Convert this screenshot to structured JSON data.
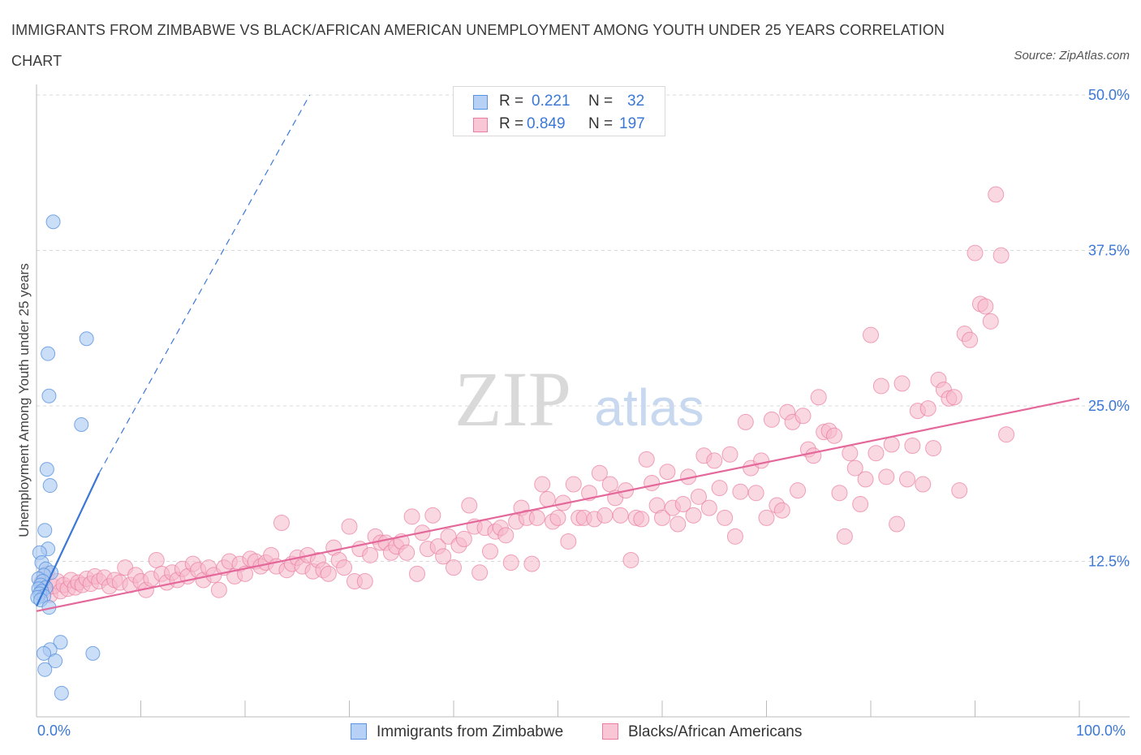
{
  "header": {
    "title": "IMMIGRANTS FROM ZIMBABWE VS BLACK/AFRICAN AMERICAN UNEMPLOYMENT AMONG YOUTH UNDER 25 YEARS CORRELATION CHART",
    "source": "Source: ZipAtlas.com"
  },
  "legend": {
    "rows": [
      {
        "r_label": "R =",
        "r_value": "0.221",
        "n_label": "N =",
        "n_value": "32"
      },
      {
        "r_label": "R =",
        "r_value": "0.849",
        "n_label": "N =",
        "n_value": "197"
      }
    ]
  },
  "bottom_legend": {
    "series1": "Immigrants from Zimbabwe",
    "series2": "Blacks/African Americans"
  },
  "watermark": {
    "zip": "ZIP",
    "atlas": "atlas"
  },
  "colors": {
    "blue_fill": "#a9c8f2",
    "blue_stroke": "#5b93df",
    "blue_line": "#3b78d6",
    "pink_fill": "#f5b8cb",
    "pink_stroke": "#e97ea0",
    "pink_line": "#e4689a",
    "axis_label": "#3b78d6",
    "grid": "#d8d8d8"
  },
  "chart_data": {
    "type": "scatter",
    "title": "IMMIGRANTS FROM ZIMBABWE VS BLACK/AFRICAN AMERICAN UNEMPLOYMENT AMONG YOUTH UNDER 25 YEARS CORRELATION CHART",
    "xlabel": "",
    "ylabel": "Unemployment Among Youth under 25 years",
    "xlim": [
      0,
      100
    ],
    "ylim": [
      0,
      50
    ],
    "x_tick_labels": [
      "0.0%",
      "100.0%"
    ],
    "y_ticks": [
      12.5,
      25.0,
      37.5,
      50.0
    ],
    "y_tick_labels": [
      "12.5%",
      "25.0%",
      "37.5%",
      "50.0%"
    ],
    "grid": "horizontal dashed",
    "legend_placement": "top-center",
    "series": [
      {
        "name": "Immigrants from Zimbabwe",
        "color": "#a9c8f2",
        "r": 0.221,
        "n": 32,
        "trend_solid": [
          [
            0,
            8.9
          ],
          [
            6.0,
            19.6
          ]
        ],
        "trend_dashed": [
          [
            6.0,
            19.6
          ],
          [
            26.2,
            50.0
          ]
        ],
        "points": [
          [
            1.6,
            39.8
          ],
          [
            4.8,
            30.4
          ],
          [
            1.1,
            29.2
          ],
          [
            1.2,
            25.8
          ],
          [
            4.3,
            23.5
          ],
          [
            1.0,
            19.9
          ],
          [
            1.3,
            18.6
          ],
          [
            0.8,
            15.0
          ],
          [
            1.1,
            13.5
          ],
          [
            0.3,
            13.2
          ],
          [
            0.5,
            12.4
          ],
          [
            0.9,
            11.9
          ],
          [
            1.4,
            11.6
          ],
          [
            0.7,
            11.4
          ],
          [
            0.2,
            11.1
          ],
          [
            0.6,
            10.9
          ],
          [
            0.4,
            10.6
          ],
          [
            0.9,
            10.4
          ],
          [
            0.2,
            10.3
          ],
          [
            0.5,
            10.1
          ],
          [
            0.3,
            9.9
          ],
          [
            0.7,
            9.7
          ],
          [
            0.1,
            9.6
          ],
          [
            0.4,
            9.4
          ],
          [
            1.2,
            8.8
          ],
          [
            2.3,
            6.0
          ],
          [
            1.3,
            5.4
          ],
          [
            5.4,
            5.1
          ],
          [
            0.7,
            5.1
          ],
          [
            1.8,
            4.5
          ],
          [
            0.8,
            3.8
          ],
          [
            2.4,
            1.9
          ]
        ]
      },
      {
        "name": "Blacks/African Americans",
        "color": "#f5b8cb",
        "r": 0.849,
        "n": 197,
        "trend": [
          [
            0,
            8.5
          ],
          [
            100,
            25.6
          ]
        ],
        "points": [
          [
            0.5,
            10.8
          ],
          [
            0.8,
            10.2
          ],
          [
            1.0,
            11.5
          ],
          [
            1.3,
            9.8
          ],
          [
            1.6,
            10.5
          ],
          [
            2.0,
            10.9
          ],
          [
            2.3,
            10.1
          ],
          [
            2.6,
            10.6
          ],
          [
            3.0,
            10.3
          ],
          [
            3.3,
            11.0
          ],
          [
            3.7,
            10.4
          ],
          [
            4.0,
            10.8
          ],
          [
            4.4,
            10.6
          ],
          [
            4.8,
            11.1
          ],
          [
            5.2,
            10.7
          ],
          [
            5.6,
            11.3
          ],
          [
            6.0,
            10.9
          ],
          [
            6.5,
            11.2
          ],
          [
            7.0,
            10.5
          ],
          [
            7.5,
            11.0
          ],
          [
            8.0,
            10.8
          ],
          [
            8.5,
            12.0
          ],
          [
            9.0,
            10.6
          ],
          [
            9.5,
            11.4
          ],
          [
            10.0,
            10.9
          ],
          [
            10.5,
            10.2
          ],
          [
            11.0,
            11.1
          ],
          [
            11.5,
            12.6
          ],
          [
            12.0,
            11.5
          ],
          [
            12.5,
            10.8
          ],
          [
            13.0,
            11.6
          ],
          [
            13.5,
            11.0
          ],
          [
            14.0,
            11.9
          ],
          [
            14.5,
            11.3
          ],
          [
            15.0,
            12.3
          ],
          [
            15.5,
            11.8
          ],
          [
            16.0,
            11.0
          ],
          [
            16.5,
            12.0
          ],
          [
            17.0,
            11.4
          ],
          [
            17.5,
            10.2
          ],
          [
            18.0,
            12.0
          ],
          [
            18.5,
            12.5
          ],
          [
            19.0,
            11.3
          ],
          [
            19.5,
            12.3
          ],
          [
            20.0,
            11.5
          ],
          [
            20.5,
            12.7
          ],
          [
            21.0,
            12.5
          ],
          [
            21.5,
            12.1
          ],
          [
            22.0,
            12.4
          ],
          [
            22.5,
            13.0
          ],
          [
            23.0,
            12.1
          ],
          [
            23.5,
            15.6
          ],
          [
            24.0,
            11.8
          ],
          [
            24.5,
            12.3
          ],
          [
            25.0,
            12.8
          ],
          [
            25.5,
            12.1
          ],
          [
            26.0,
            13.0
          ],
          [
            26.5,
            11.7
          ],
          [
            27.0,
            12.6
          ],
          [
            27.5,
            11.8
          ],
          [
            28.0,
            11.5
          ],
          [
            28.5,
            13.6
          ],
          [
            29.0,
            12.6
          ],
          [
            29.5,
            12.0
          ],
          [
            30.0,
            15.3
          ],
          [
            30.5,
            10.9
          ],
          [
            31.0,
            13.5
          ],
          [
            31.5,
            10.9
          ],
          [
            32.0,
            13.0
          ],
          [
            32.5,
            14.5
          ],
          [
            33.0,
            14.0
          ],
          [
            33.5,
            14.0
          ],
          [
            34.0,
            13.2
          ],
          [
            34.5,
            13.7
          ],
          [
            35.0,
            14.1
          ],
          [
            35.5,
            13.2
          ],
          [
            36.0,
            16.1
          ],
          [
            36.5,
            11.5
          ],
          [
            37.0,
            14.8
          ],
          [
            37.5,
            13.5
          ],
          [
            38.0,
            16.2
          ],
          [
            38.5,
            13.7
          ],
          [
            39.0,
            12.9
          ],
          [
            39.5,
            14.5
          ],
          [
            40.0,
            12.0
          ],
          [
            40.5,
            13.8
          ],
          [
            41.0,
            14.3
          ],
          [
            41.5,
            17.0
          ],
          [
            42.0,
            15.3
          ],
          [
            42.5,
            11.6
          ],
          [
            43.0,
            15.2
          ],
          [
            43.5,
            13.3
          ],
          [
            44.0,
            14.9
          ],
          [
            44.5,
            15.2
          ],
          [
            45.0,
            14.6
          ],
          [
            45.5,
            12.4
          ],
          [
            46.0,
            15.7
          ],
          [
            46.5,
            16.8
          ],
          [
            47.0,
            16.0
          ],
          [
            47.5,
            12.3
          ],
          [
            48.0,
            16.0
          ],
          [
            48.5,
            18.7
          ],
          [
            49.0,
            17.5
          ],
          [
            49.5,
            15.7
          ],
          [
            50.0,
            16.0
          ],
          [
            50.5,
            17.2
          ],
          [
            51.0,
            14.1
          ],
          [
            51.5,
            18.7
          ],
          [
            52.0,
            16.0
          ],
          [
            52.5,
            16.0
          ],
          [
            53.0,
            18.0
          ],
          [
            53.5,
            15.9
          ],
          [
            54.0,
            19.6
          ],
          [
            54.5,
            16.2
          ],
          [
            55.0,
            18.7
          ],
          [
            55.5,
            17.6
          ],
          [
            56.0,
            16.2
          ],
          [
            56.5,
            18.2
          ],
          [
            57.0,
            12.6
          ],
          [
            57.5,
            16.0
          ],
          [
            58.0,
            15.9
          ],
          [
            58.5,
            20.7
          ],
          [
            59.0,
            18.8
          ],
          [
            59.5,
            17.0
          ],
          [
            60.0,
            16.0
          ],
          [
            60.5,
            19.7
          ],
          [
            61.0,
            16.8
          ],
          [
            61.5,
            15.5
          ],
          [
            62.0,
            17.1
          ],
          [
            62.5,
            19.3
          ],
          [
            63.0,
            16.2
          ],
          [
            63.5,
            17.7
          ],
          [
            64.0,
            21.0
          ],
          [
            64.5,
            16.8
          ],
          [
            65.0,
            20.6
          ],
          [
            65.5,
            18.4
          ],
          [
            66.0,
            16.0
          ],
          [
            66.5,
            21.1
          ],
          [
            67.0,
            14.5
          ],
          [
            67.5,
            18.1
          ],
          [
            68.0,
            23.7
          ],
          [
            68.5,
            20.0
          ],
          [
            69.0,
            18.0
          ],
          [
            69.5,
            20.6
          ],
          [
            70.0,
            16.0
          ],
          [
            70.5,
            23.9
          ],
          [
            71.0,
            17.0
          ],
          [
            71.5,
            16.6
          ],
          [
            72.0,
            24.5
          ],
          [
            72.5,
            23.7
          ],
          [
            73.0,
            18.2
          ],
          [
            73.5,
            24.2
          ],
          [
            74.0,
            21.5
          ],
          [
            74.5,
            21.0
          ],
          [
            75.0,
            25.7
          ],
          [
            75.5,
            22.9
          ],
          [
            76.0,
            23.0
          ],
          [
            76.5,
            22.6
          ],
          [
            77.0,
            18.0
          ],
          [
            77.5,
            14.5
          ],
          [
            78.0,
            21.2
          ],
          [
            78.5,
            20.0
          ],
          [
            79.0,
            17.1
          ],
          [
            79.5,
            19.1
          ],
          [
            80.0,
            30.7
          ],
          [
            80.5,
            21.2
          ],
          [
            81.0,
            26.6
          ],
          [
            81.5,
            19.3
          ],
          [
            82.0,
            21.9
          ],
          [
            82.5,
            15.5
          ],
          [
            83.0,
            26.8
          ],
          [
            83.5,
            19.1
          ],
          [
            84.0,
            21.8
          ],
          [
            84.5,
            24.6
          ],
          [
            85.0,
            18.7
          ],
          [
            85.5,
            24.8
          ],
          [
            86.0,
            21.6
          ],
          [
            86.5,
            27.1
          ],
          [
            87.0,
            26.3
          ],
          [
            87.5,
            25.6
          ],
          [
            88.0,
            25.7
          ],
          [
            88.5,
            18.2
          ],
          [
            89.0,
            30.8
          ],
          [
            89.5,
            30.3
          ],
          [
            90.0,
            37.3
          ],
          [
            90.5,
            33.2
          ],
          [
            91.0,
            33.0
          ],
          [
            91.5,
            31.8
          ],
          [
            92.0,
            42.0
          ],
          [
            92.5,
            37.1
          ],
          [
            93.0,
            22.7
          ]
        ]
      }
    ]
  }
}
